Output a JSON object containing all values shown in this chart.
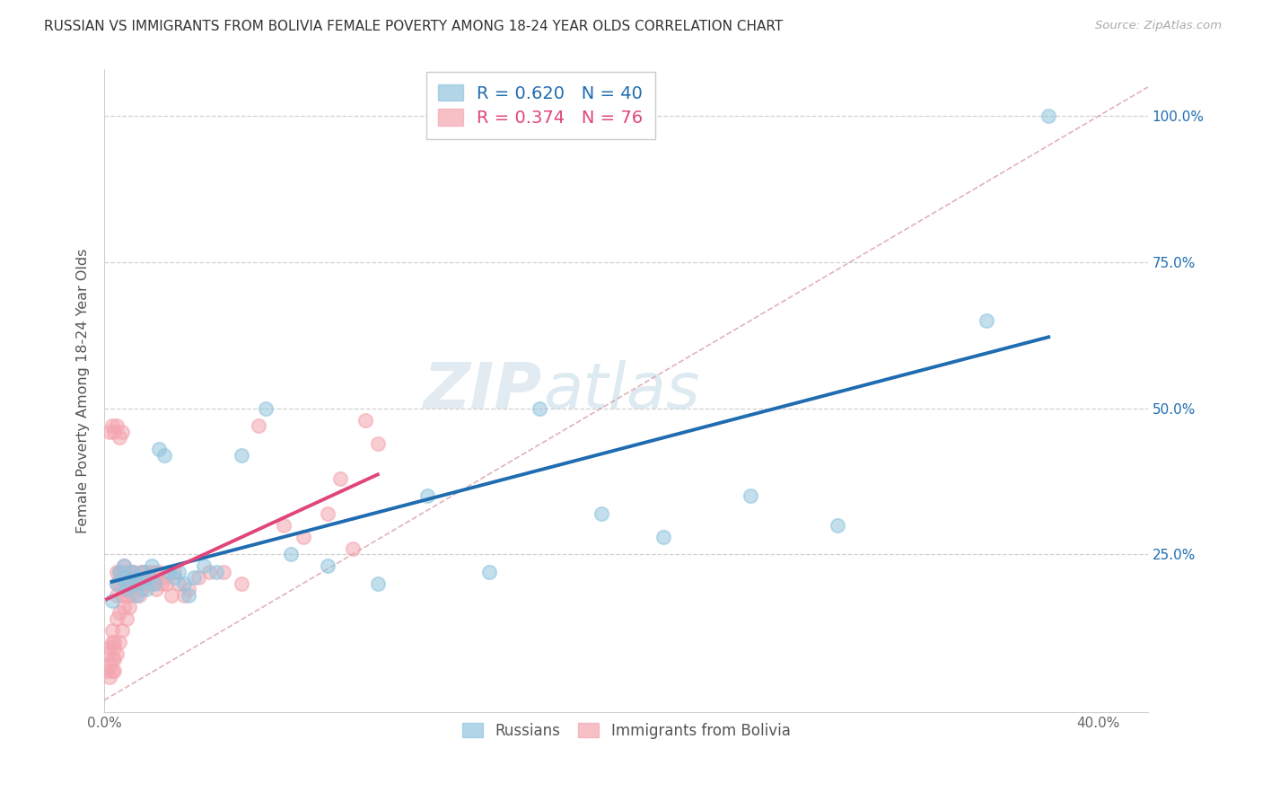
{
  "title": "RUSSIAN VS IMMIGRANTS FROM BOLIVIA FEMALE POVERTY AMONG 18-24 YEAR OLDS CORRELATION CHART",
  "source": "Source: ZipAtlas.com",
  "ylabel": "Female Poverty Among 18-24 Year Olds",
  "xlim": [
    0.0,
    0.42
  ],
  "ylim": [
    -0.02,
    1.08
  ],
  "ytick_vals": [
    0.0,
    0.25,
    0.5,
    0.75,
    1.0
  ],
  "ytick_labels_right": [
    "",
    "25.0%",
    "50.0%",
    "75.0%",
    "100.0%"
  ],
  "xtick_vals": [
    0.0,
    0.05,
    0.1,
    0.15,
    0.2,
    0.25,
    0.3,
    0.35,
    0.4
  ],
  "xtick_labels": [
    "0.0%",
    "",
    "",
    "",
    "",
    "",
    "",
    "",
    "40.0%"
  ],
  "russian_color": "#92c5de",
  "bolivia_color": "#f4a6b0",
  "trendline_russian_color": "#1f6cb0",
  "trendline_bolivia_color": "#e0457b",
  "diagonal_color": "#d9a0a8",
  "grid_color": "#d0d0d0",
  "R_russian": 0.62,
  "N_russian": 40,
  "R_bolivia": 0.374,
  "N_bolivia": 76,
  "watermark_text": "ZIP",
  "watermark_text2": "atlas",
  "russians_x": [
    0.003,
    0.005,
    0.006,
    0.007,
    0.008,
    0.009,
    0.01,
    0.011,
    0.012,
    0.013,
    0.014,
    0.015,
    0.017,
    0.018,
    0.019,
    0.02,
    0.022,
    0.024,
    0.026,
    0.028,
    0.03,
    0.032,
    0.034,
    0.036,
    0.04,
    0.045,
    0.055,
    0.065,
    0.075,
    0.09,
    0.11,
    0.13,
    0.155,
    0.175,
    0.2,
    0.225,
    0.26,
    0.295,
    0.355,
    0.38
  ],
  "russians_y": [
    0.17,
    0.2,
    0.22,
    0.21,
    0.23,
    0.19,
    0.2,
    0.22,
    0.21,
    0.18,
    0.2,
    0.22,
    0.19,
    0.21,
    0.23,
    0.2,
    0.43,
    0.42,
    0.22,
    0.21,
    0.22,
    0.2,
    0.18,
    0.21,
    0.23,
    0.22,
    0.42,
    0.5,
    0.25,
    0.23,
    0.2,
    0.35,
    0.22,
    0.5,
    0.32,
    0.28,
    0.35,
    0.3,
    0.65,
    1.0
  ],
  "bolivia_x": [
    0.001,
    0.001,
    0.002,
    0.002,
    0.002,
    0.003,
    0.003,
    0.003,
    0.003,
    0.004,
    0.004,
    0.004,
    0.004,
    0.005,
    0.005,
    0.005,
    0.005,
    0.005,
    0.006,
    0.006,
    0.006,
    0.006,
    0.007,
    0.007,
    0.007,
    0.008,
    0.008,
    0.008,
    0.009,
    0.009,
    0.009,
    0.01,
    0.01,
    0.01,
    0.011,
    0.011,
    0.012,
    0.012,
    0.013,
    0.014,
    0.015,
    0.015,
    0.016,
    0.016,
    0.017,
    0.018,
    0.019,
    0.02,
    0.021,
    0.022,
    0.023,
    0.024,
    0.025,
    0.027,
    0.028,
    0.03,
    0.032,
    0.034,
    0.038,
    0.042,
    0.048,
    0.055,
    0.062,
    0.072,
    0.08,
    0.09,
    0.095,
    0.1,
    0.105,
    0.11,
    0.002,
    0.003,
    0.004,
    0.005,
    0.006,
    0.007
  ],
  "bolivia_y": [
    0.05,
    0.08,
    0.06,
    0.09,
    0.04,
    0.05,
    0.07,
    0.1,
    0.12,
    0.07,
    0.09,
    0.05,
    0.1,
    0.22,
    0.2,
    0.18,
    0.14,
    0.08,
    0.22,
    0.2,
    0.15,
    0.1,
    0.22,
    0.18,
    0.12,
    0.23,
    0.2,
    0.16,
    0.2,
    0.18,
    0.14,
    0.22,
    0.2,
    0.16,
    0.22,
    0.18,
    0.22,
    0.2,
    0.21,
    0.18,
    0.22,
    0.19,
    0.22,
    0.2,
    0.21,
    0.22,
    0.2,
    0.22,
    0.19,
    0.22,
    0.2,
    0.21,
    0.2,
    0.18,
    0.22,
    0.2,
    0.18,
    0.19,
    0.21,
    0.22,
    0.22,
    0.2,
    0.47,
    0.3,
    0.28,
    0.32,
    0.38,
    0.26,
    0.48,
    0.44,
    0.46,
    0.47,
    0.46,
    0.47,
    0.45,
    0.46
  ]
}
